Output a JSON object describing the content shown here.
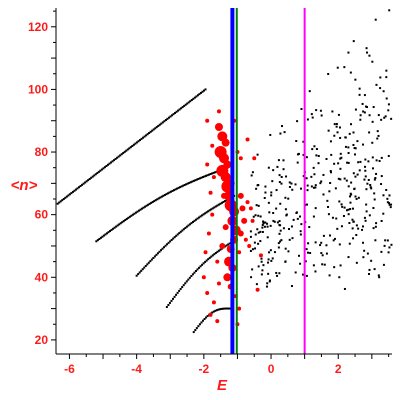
{
  "chart_data": {
    "type": "scatter",
    "xlabel": "E",
    "ylabel": "<n>",
    "xlim": [
      -6.4,
      3.6
    ],
    "ylim": [
      15.5,
      126
    ],
    "xticks": [
      -6,
      -4,
      -2,
      0,
      2
    ],
    "yticks": [
      20,
      40,
      60,
      80,
      100,
      120
    ],
    "grid": false,
    "legend": "none",
    "series": [
      {
        "marker": "small-dot",
        "color": "#000000",
        "curves": [
          {
            "x": [
              -6.35,
              -1.95
            ],
            "y": [
              63.5,
              100
            ]
          },
          {
            "x": [
              -5.2,
              -1.3
            ],
            "y": [
              51.5,
              75
            ]
          },
          {
            "x": [
              -4.0,
              -1.1
            ],
            "y": [
              40.5,
              66
            ]
          },
          {
            "x": [
              -3.1,
              -1.05
            ],
            "y": [
              30.5,
              52
            ]
          },
          {
            "x": [
              -2.3,
              -1.2
            ],
            "y": [
              22.5,
              30
            ]
          }
        ]
      },
      {
        "marker": "random-scatter",
        "color": "#000000",
        "region": {
          "x": [
            -0.6,
            3.6
          ],
          "y": [
            36,
            126
          ]
        }
      },
      {
        "marker": "filled-circle",
        "color": "#ff0000",
        "points": [
          {
            "x": -1.55,
            "y": 88,
            "s": 4
          },
          {
            "x": -1.45,
            "y": 85,
            "s": 5
          },
          {
            "x": -1.35,
            "y": 83,
            "s": 4
          },
          {
            "x": -1.5,
            "y": 80,
            "s": 6
          },
          {
            "x": -1.4,
            "y": 78,
            "s": 5
          },
          {
            "x": -1.3,
            "y": 76,
            "s": 4
          },
          {
            "x": -1.45,
            "y": 74,
            "s": 6
          },
          {
            "x": -1.35,
            "y": 72,
            "s": 5
          },
          {
            "x": -1.3,
            "y": 69,
            "s": 6
          },
          {
            "x": -1.25,
            "y": 66,
            "s": 5
          },
          {
            "x": -1.2,
            "y": 63,
            "s": 6
          },
          {
            "x": -1.1,
            "y": 61,
            "s": 5
          },
          {
            "x": -1.15,
            "y": 58,
            "s": 5
          },
          {
            "x": -1.05,
            "y": 55,
            "s": 5
          },
          {
            "x": -1.1,
            "y": 52,
            "s": 4
          },
          {
            "x": -1.2,
            "y": 49,
            "s": 4
          },
          {
            "x": -1.25,
            "y": 45,
            "s": 5
          },
          {
            "x": -1.15,
            "y": 43,
            "s": 4
          },
          {
            "x": -1.3,
            "y": 40,
            "s": 4
          },
          {
            "x": -1.2,
            "y": 37,
            "s": 3
          },
          {
            "x": -0.9,
            "y": 66,
            "s": 3
          },
          {
            "x": -0.85,
            "y": 62,
            "s": 3
          },
          {
            "x": -0.8,
            "y": 58,
            "s": 3
          },
          {
            "x": -0.9,
            "y": 54,
            "s": 3
          },
          {
            "x": -0.75,
            "y": 52,
            "s": 2
          },
          {
            "x": -0.7,
            "y": 64,
            "s": 2
          },
          {
            "x": -0.95,
            "y": 48,
            "s": 2
          },
          {
            "x": -1.7,
            "y": 72,
            "s": 2
          },
          {
            "x": -1.8,
            "y": 67,
            "s": 2
          },
          {
            "x": -1.9,
            "y": 76,
            "s": 2
          },
          {
            "x": -1.75,
            "y": 60,
            "s": 2
          },
          {
            "x": -1.85,
            "y": 54,
            "s": 2
          },
          {
            "x": -1.95,
            "y": 48,
            "s": 2
          },
          {
            "x": -2.0,
            "y": 40,
            "s": 2
          },
          {
            "x": -1.9,
            "y": 35,
            "s": 2
          },
          {
            "x": -1.6,
            "y": 45,
            "s": 2
          },
          {
            "x": -1.55,
            "y": 38,
            "s": 2
          },
          {
            "x": -1.7,
            "y": 32,
            "s": 2
          },
          {
            "x": -1.8,
            "y": 28,
            "s": 2
          },
          {
            "x": -1.6,
            "y": 26,
            "s": 2
          },
          {
            "x": -1.05,
            "y": 34,
            "s": 2
          },
          {
            "x": -0.95,
            "y": 30,
            "s": 2
          },
          {
            "x": -1.0,
            "y": 25,
            "s": 2
          },
          {
            "x": -1.0,
            "y": 80,
            "s": 2
          },
          {
            "x": -0.9,
            "y": 78,
            "s": 2
          },
          {
            "x": -0.7,
            "y": 84,
            "s": 2
          },
          {
            "x": -0.5,
            "y": 78,
            "s": 2
          },
          {
            "x": -0.55,
            "y": 58,
            "s": 2
          },
          {
            "x": -0.6,
            "y": 62,
            "s": 2
          },
          {
            "x": -0.65,
            "y": 50,
            "s": 2
          },
          {
            "x": -0.3,
            "y": 47,
            "s": 2
          },
          {
            "x": -0.4,
            "y": 36,
            "s": 2
          },
          {
            "x": -1.9,
            "y": 90,
            "s": 2
          },
          {
            "x": -1.75,
            "y": 82,
            "s": 2
          },
          {
            "x": -1.1,
            "y": 90,
            "s": 2
          },
          {
            "x": -1.55,
            "y": 93,
            "s": 2
          },
          {
            "x": -1.2,
            "y": 70,
            "s": 4
          },
          {
            "x": -1.4,
            "y": 66,
            "s": 3
          },
          {
            "x": -1.35,
            "y": 56,
            "s": 3
          },
          {
            "x": -1.45,
            "y": 50,
            "s": 3
          }
        ]
      }
    ],
    "vertical_lines": [
      {
        "x": -1.15,
        "color": "#0000ff",
        "width": 4
      },
      {
        "x": -1.02,
        "color": "#008000",
        "width": 2
      },
      {
        "x": 1.0,
        "color": "#ff00ff",
        "width": 2
      }
    ]
  }
}
